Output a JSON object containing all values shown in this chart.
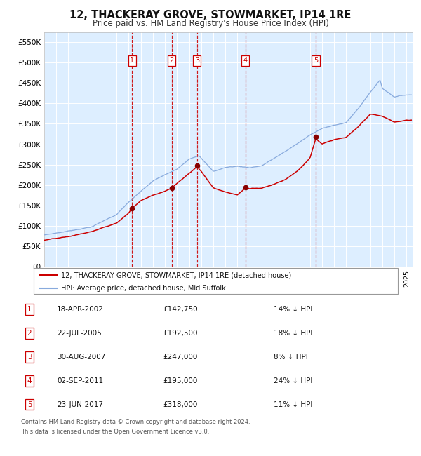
{
  "title": "12, THACKERAY GROVE, STOWMARKET, IP14 1RE",
  "subtitle": "Price paid vs. HM Land Registry's House Price Index (HPI)",
  "xlim": [
    1995,
    2025.5
  ],
  "ylim": [
    0,
    575000
  ],
  "yticks": [
    0,
    50000,
    100000,
    150000,
    200000,
    250000,
    300000,
    350000,
    400000,
    450000,
    500000,
    550000
  ],
  "ytick_labels": [
    "£0",
    "£50K",
    "£100K",
    "£150K",
    "£200K",
    "£250K",
    "£300K",
    "£350K",
    "£400K",
    "£450K",
    "£500K",
    "£550K"
  ],
  "bg_color": "#ddeeff",
  "grid_color": "#ffffff",
  "hpi_line_color": "#88aadd",
  "price_line_color": "#cc0000",
  "sale_dot_color": "#880000",
  "dashed_line_color": "#cc0000",
  "sale_points": [
    {
      "num": 1,
      "year": 2002.29,
      "price": 142750
    },
    {
      "num": 2,
      "year": 2005.55,
      "price": 192500
    },
    {
      "num": 3,
      "year": 2007.66,
      "price": 247000
    },
    {
      "num": 4,
      "year": 2011.67,
      "price": 195000
    },
    {
      "num": 5,
      "year": 2017.48,
      "price": 318000
    }
  ],
  "legend_entries": [
    "12, THACKERAY GROVE, STOWMARKET, IP14 1RE (detached house)",
    "HPI: Average price, detached house, Mid Suffolk"
  ],
  "table_rows": [
    [
      "1",
      "18-APR-2002",
      "£142,750",
      "14% ↓ HPI"
    ],
    [
      "2",
      "22-JUL-2005",
      "£192,500",
      "18% ↓ HPI"
    ],
    [
      "3",
      "30-AUG-2007",
      "£247,000",
      "8% ↓ HPI"
    ],
    [
      "4",
      "02-SEP-2011",
      "£195,000",
      "24% ↓ HPI"
    ],
    [
      "5",
      "23-JUN-2017",
      "£318,000",
      "11% ↓ HPI"
    ]
  ],
  "footnote1": "Contains HM Land Registry data © Crown copyright and database right 2024.",
  "footnote2": "This data is licensed under the Open Government Licence v3.0."
}
